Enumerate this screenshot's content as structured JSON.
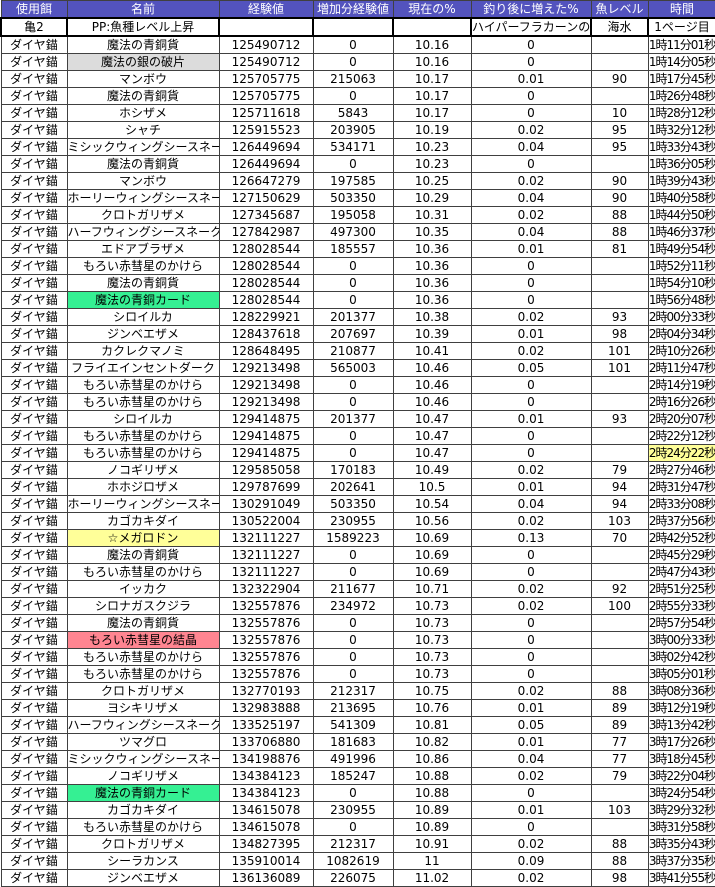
{
  "table": {
    "columns": [
      "使用餌",
      "名前",
      "経験値",
      "増加分経験値",
      "現在の%",
      "釣り後に増えた%",
      "魚レベル",
      "時間"
    ],
    "col_keys": [
      "bait",
      "name",
      "exp",
      "gain",
      "pct",
      "after",
      "level",
      "time"
    ],
    "subheader": [
      "亀2",
      "PP:魚種レベル上昇",
      "",
      "",
      "",
      "ハイパーフラカーンの槍",
      "海水",
      "1ページ目"
    ],
    "rows": [
      {
        "c": [
          "ダイヤ錨",
          "魔法の青銅貨",
          "125490712",
          "0",
          "10.16",
          "0",
          "",
          "1時11分01秒"
        ],
        "hl": ""
      },
      {
        "c": [
          "ダイヤ錨",
          "魔法の銀の破片",
          "125490712",
          "0",
          "10.16",
          "0",
          "",
          "1時14分05秒"
        ],
        "hl": "gray"
      },
      {
        "c": [
          "ダイヤ錨",
          "マンボウ",
          "125705775",
          "215063",
          "10.17",
          "0.01",
          "90",
          "1時17分45秒"
        ],
        "hl": ""
      },
      {
        "c": [
          "ダイヤ錨",
          "魔法の青銅貨",
          "125705775",
          "0",
          "10.17",
          "0",
          "",
          "1時26分48秒"
        ],
        "hl": ""
      },
      {
        "c": [
          "ダイヤ錨",
          "ホシザメ",
          "125711618",
          "5843",
          "10.17",
          "0",
          "10",
          "1時28分12秒"
        ],
        "hl": ""
      },
      {
        "c": [
          "ダイヤ錨",
          "シャチ",
          "125915523",
          "203905",
          "10.19",
          "0.02",
          "95",
          "1時32分12秒"
        ],
        "hl": ""
      },
      {
        "c": [
          "ダイヤ錨",
          "ミシックウィングシースネーク",
          "126449694",
          "534171",
          "10.23",
          "0.04",
          "95",
          "1時33分43秒"
        ],
        "hl": ""
      },
      {
        "c": [
          "ダイヤ錨",
          "魔法の青銅貨",
          "126449694",
          "0",
          "10.23",
          "0",
          "",
          "1時36分05秒"
        ],
        "hl": ""
      },
      {
        "c": [
          "ダイヤ錨",
          "マンボウ",
          "126647279",
          "197585",
          "10.25",
          "0.02",
          "90",
          "1時39分43秒"
        ],
        "hl": ""
      },
      {
        "c": [
          "ダイヤ錨",
          "ホーリーウィングシースネーク",
          "127150629",
          "503350",
          "10.29",
          "0.04",
          "90",
          "1時40分58秒"
        ],
        "hl": ""
      },
      {
        "c": [
          "ダイヤ錨",
          "クロトガリザメ",
          "127345687",
          "195058",
          "10.31",
          "0.02",
          "88",
          "1時44分50秒"
        ],
        "hl": ""
      },
      {
        "c": [
          "ダイヤ錨",
          "ハーフウィングシースネーク",
          "127842987",
          "497300",
          "10.35",
          "0.04",
          "88",
          "1時46分37秒"
        ],
        "hl": ""
      },
      {
        "c": [
          "ダイヤ錨",
          "エドアブラザメ",
          "128028544",
          "185557",
          "10.36",
          "0.01",
          "81",
          "1時49分54秒"
        ],
        "hl": ""
      },
      {
        "c": [
          "ダイヤ錨",
          "もろい赤彗星のかけら",
          "128028544",
          "0",
          "10.36",
          "0",
          "",
          "1時52分11秒"
        ],
        "hl": ""
      },
      {
        "c": [
          "ダイヤ錨",
          "魔法の青銅貨",
          "128028544",
          "0",
          "10.36",
          "0",
          "",
          "1時54分10秒"
        ],
        "hl": ""
      },
      {
        "c": [
          "ダイヤ錨",
          "魔法の青銅カード",
          "128028544",
          "0",
          "10.36",
          "0",
          "",
          "1時56分48秒"
        ],
        "hl": "green"
      },
      {
        "c": [
          "ダイヤ錨",
          "シロイルカ",
          "128229921",
          "201377",
          "10.38",
          "0.02",
          "93",
          "2時00分33秒"
        ],
        "hl": ""
      },
      {
        "c": [
          "ダイヤ錨",
          "ジンベエザメ",
          "128437618",
          "207697",
          "10.39",
          "0.01",
          "98",
          "2時04分34秒"
        ],
        "hl": ""
      },
      {
        "c": [
          "ダイヤ錨",
          "カクレクマノミ",
          "128648495",
          "210877",
          "10.41",
          "0.02",
          "101",
          "2時10分26秒"
        ],
        "hl": ""
      },
      {
        "c": [
          "ダイヤ錨",
          "フライエインセントダーク",
          "129213498",
          "565003",
          "10.46",
          "0.05",
          "101",
          "2時11分47秒"
        ],
        "hl": ""
      },
      {
        "c": [
          "ダイヤ錨",
          "もろい赤彗星のかけら",
          "129213498",
          "0",
          "10.46",
          "0",
          "",
          "2時14分19秒"
        ],
        "hl": ""
      },
      {
        "c": [
          "ダイヤ錨",
          "もろい赤彗星のかけら",
          "129213498",
          "0",
          "10.46",
          "0",
          "",
          "2時16分26秒"
        ],
        "hl": ""
      },
      {
        "c": [
          "ダイヤ錨",
          "シロイルカ",
          "129414875",
          "201377",
          "10.47",
          "0.01",
          "93",
          "2時20分07秒"
        ],
        "hl": ""
      },
      {
        "c": [
          "ダイヤ錨",
          "もろい赤彗星のかけら",
          "129414875",
          "0",
          "10.47",
          "0",
          "",
          "2時22分12秒"
        ],
        "hl": ""
      },
      {
        "c": [
          "ダイヤ錨",
          "もろい赤彗星のかけら",
          "129414875",
          "0",
          "10.47",
          "0",
          "",
          "2時24分22秒"
        ],
        "hl": "time-yellow"
      },
      {
        "c": [
          "ダイヤ錨",
          "ノコギリザメ",
          "129585058",
          "170183",
          "10.49",
          "0.02",
          "79",
          "2時27分46秒"
        ],
        "hl": ""
      },
      {
        "c": [
          "ダイヤ錨",
          "ホホジロザメ",
          "129787699",
          "202641",
          "10.5",
          "0.01",
          "94",
          "2時31分47秒"
        ],
        "hl": ""
      },
      {
        "c": [
          "ダイヤ錨",
          "ホーリーウィングシースネーク",
          "130291049",
          "503350",
          "10.54",
          "0.04",
          "94",
          "2時33分08秒"
        ],
        "hl": ""
      },
      {
        "c": [
          "ダイヤ錨",
          "カゴカキダイ",
          "130522004",
          "230955",
          "10.56",
          "0.02",
          "103",
          "2時37分56秒"
        ],
        "hl": ""
      },
      {
        "c": [
          "ダイヤ錨",
          "☆メガロドン",
          "132111227",
          "1589223",
          "10.69",
          "0.13",
          "70",
          "2時42分52秒"
        ],
        "hl": "yellow"
      },
      {
        "c": [
          "ダイヤ錨",
          "魔法の青銅貨",
          "132111227",
          "0",
          "10.69",
          "0",
          "",
          "2時45分29秒"
        ],
        "hl": ""
      },
      {
        "c": [
          "ダイヤ錨",
          "もろい赤彗星のかけら",
          "132111227",
          "0",
          "10.69",
          "0",
          "",
          "2時47分43秒"
        ],
        "hl": ""
      },
      {
        "c": [
          "ダイヤ錨",
          "イッカク",
          "132322904",
          "211677",
          "10.71",
          "0.02",
          "92",
          "2時51分25秒"
        ],
        "hl": ""
      },
      {
        "c": [
          "ダイヤ錨",
          "シロナガスクジラ",
          "132557876",
          "234972",
          "10.73",
          "0.02",
          "100",
          "2時55分33秒"
        ],
        "hl": ""
      },
      {
        "c": [
          "ダイヤ錨",
          "魔法の青銅貨",
          "132557876",
          "0",
          "10.73",
          "0",
          "",
          "2時57分54秒"
        ],
        "hl": ""
      },
      {
        "c": [
          "ダイヤ錨",
          "もろい赤彗星の結晶",
          "132557876",
          "0",
          "10.73",
          "0",
          "",
          "3時00分33秒"
        ],
        "hl": "red"
      },
      {
        "c": [
          "ダイヤ錨",
          "もろい赤彗星のかけら",
          "132557876",
          "0",
          "10.73",
          "0",
          "",
          "3時02分42秒"
        ],
        "hl": ""
      },
      {
        "c": [
          "ダイヤ錨",
          "もろい赤彗星のかけら",
          "132557876",
          "0",
          "10.73",
          "0",
          "",
          "3時05分01秒"
        ],
        "hl": ""
      },
      {
        "c": [
          "ダイヤ錨",
          "クロトガリザメ",
          "132770193",
          "212317",
          "10.75",
          "0.02",
          "88",
          "3時08分36秒"
        ],
        "hl": ""
      },
      {
        "c": [
          "ダイヤ錨",
          "ヨシキリザメ",
          "132983888",
          "213695",
          "10.76",
          "0.01",
          "89",
          "3時12分19秒"
        ],
        "hl": ""
      },
      {
        "c": [
          "ダイヤ錨",
          "ハーフウィングシースネーク",
          "133525197",
          "541309",
          "10.81",
          "0.05",
          "89",
          "3時13分42秒"
        ],
        "hl": ""
      },
      {
        "c": [
          "ダイヤ錨",
          "ツマグロ",
          "133706880",
          "181683",
          "10.82",
          "0.01",
          "77",
          "3時17分26秒"
        ],
        "hl": ""
      },
      {
        "c": [
          "ダイヤ錨",
          "ミシックウィングシースネーク",
          "134198876",
          "491996",
          "10.86",
          "0.04",
          "77",
          "3時18分45秒"
        ],
        "hl": ""
      },
      {
        "c": [
          "ダイヤ錨",
          "ノコギリザメ",
          "134384123",
          "185247",
          "10.88",
          "0.02",
          "79",
          "3時22分04秒"
        ],
        "hl": ""
      },
      {
        "c": [
          "ダイヤ錨",
          "魔法の青銅カード",
          "134384123",
          "0",
          "10.88",
          "0",
          "",
          "3時24分54秒"
        ],
        "hl": "green"
      },
      {
        "c": [
          "ダイヤ錨",
          "カゴカキダイ",
          "134615078",
          "230955",
          "10.89",
          "0.01",
          "103",
          "3時29分32秒"
        ],
        "hl": ""
      },
      {
        "c": [
          "ダイヤ錨",
          "もろい赤彗星のかけら",
          "134615078",
          "0",
          "10.89",
          "0",
          "",
          "3時31分58秒"
        ],
        "hl": ""
      },
      {
        "c": [
          "ダイヤ錨",
          "クロトガリザメ",
          "134827395",
          "212317",
          "10.91",
          "0.02",
          "88",
          "3時35分43秒"
        ],
        "hl": ""
      },
      {
        "c": [
          "ダイヤ錨",
          "シーラカンス",
          "135910014",
          "1082619",
          "11",
          "0.09",
          "88",
          "3時37分35秒"
        ],
        "hl": ""
      },
      {
        "c": [
          "ダイヤ錨",
          "ジンベエザメ",
          "136136089",
          "226075",
          "11.02",
          "0.02",
          "98",
          "3時41分55秒"
        ],
        "hl": ""
      }
    ]
  },
  "colors": {
    "header_bg": "#5353BE",
    "header_text": "#FFFFFF",
    "grid": "#404040",
    "hl_gray": "#DCDCDC",
    "hl_green": "#35F093",
    "hl_yellow": "#FFFF99",
    "hl_red": "#FF8591"
  }
}
